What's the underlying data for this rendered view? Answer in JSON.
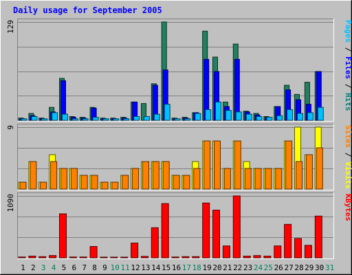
{
  "chart_data": {
    "type": "bar",
    "title": "Daily usage for September 2005",
    "categories": [
      "1",
      "2",
      "3",
      "4",
      "5",
      "6",
      "7",
      "8",
      "9",
      "10",
      "11",
      "12",
      "13",
      "14",
      "15",
      "16",
      "17",
      "18",
      "19",
      "20",
      "21",
      "22",
      "23",
      "24",
      "25",
      "26",
      "27",
      "28",
      "29",
      "30",
      "31"
    ],
    "weekend_days": [
      3,
      4,
      10,
      11,
      17,
      18,
      24,
      25,
      31
    ],
    "panels": [
      {
        "id": "hits_files_pages",
        "ymax_label": "129",
        "ymax": 129,
        "side_labels": [
          {
            "text": "Pages",
            "color": "#00c0ff"
          },
          {
            "text": " / ",
            "color": "#000000"
          },
          {
            "text": "Files",
            "color": "#0000ff"
          },
          {
            "text": " / ",
            "color": "#000000"
          },
          {
            "text": "Hits",
            "color": "#008080"
          }
        ],
        "series": [
          {
            "name": "Hits",
            "color": "#208060",
            "values": [
              3,
              9,
              3,
              17,
              55,
              5,
              4,
              17,
              3,
              3,
              4,
              24,
              22,
              48,
              129,
              3,
              4,
              10,
              117,
              83,
              24,
              100,
              12,
              9,
              5,
              18,
              46,
              34,
              50,
              64,
              0
            ]
          },
          {
            "name": "Files",
            "color": "#0000ff",
            "values": [
              2,
              6,
              2,
              11,
              52,
              4,
              3,
              16,
              2,
              2,
              3,
              24,
              0,
              46,
              66,
              2,
              3,
              10,
              80,
              64,
              18,
              80,
              11,
              7,
              4,
              18,
              40,
              27,
              21,
              64,
              0
            ]
          },
          {
            "name": "Pages",
            "color": "#00c0ff",
            "values": [
              2,
              5,
              2,
              10,
              8,
              2,
              2,
              4,
              2,
              2,
              2,
              5,
              5,
              8,
              21,
              2,
              2,
              9,
              14,
              24,
              13,
              11,
              8,
              5,
              4,
              6,
              14,
              9,
              10,
              17,
              0
            ]
          }
        ]
      },
      {
        "id": "visits_sites",
        "ymax_label": "9",
        "ymax": 9,
        "side_labels": [
          {
            "text": "Sites",
            "color": "#ff8000"
          },
          {
            "text": " / ",
            "color": "#000000"
          },
          {
            "text": "Visits",
            "color": "#ffff00"
          }
        ],
        "series": [
          {
            "name": "Visits",
            "color": "#ffff00",
            "values": [
              1,
              4,
              1,
              5,
              3,
              3,
              2,
              2,
              1,
              1,
              2,
              3,
              4,
              4,
              4,
              2,
              2,
              4,
              7,
              7,
              3,
              7,
              4,
              3,
              3,
              3,
              7,
              9,
              5,
              9,
              0
            ]
          },
          {
            "name": "Sites",
            "color": "#ff8000",
            "values": [
              1,
              4,
              1,
              4,
              3,
              3,
              2,
              2,
              1,
              1,
              2,
              3,
              4,
              4,
              4,
              2,
              2,
              3,
              7,
              7,
              3,
              7,
              3,
              3,
              3,
              3,
              7,
              4,
              5,
              6,
              0
            ]
          }
        ]
      },
      {
        "id": "kbytes",
        "ymax_label": "1090",
        "ymax": 1090,
        "side_labels": [
          {
            "text": "KBytes",
            "color": "#ff0000"
          }
        ],
        "series": [
          {
            "name": "KBytes",
            "color": "#ff0000",
            "values": [
              15,
              30,
              20,
              40,
              775,
              15,
              15,
              200,
              10,
              10,
              10,
              260,
              25,
              530,
              955,
              15,
              20,
              20,
              965,
              840,
              210,
              1090,
              30,
              40,
              30,
              210,
              590,
              340,
              220,
              735,
              0
            ]
          }
        ]
      }
    ]
  },
  "colors": {
    "background": "#c0c0c0",
    "title": "#0000ff",
    "weekday_label": "#000000",
    "weekend_label": "#00805c",
    "gridline": "#808080"
  }
}
